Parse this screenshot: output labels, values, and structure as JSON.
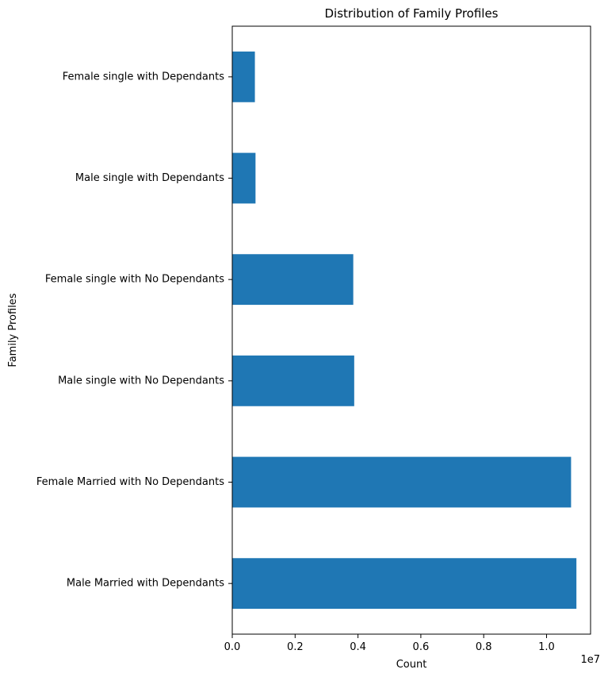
{
  "chart_data": {
    "type": "bar",
    "orientation": "horizontal",
    "title": "Distribution of Family Profiles",
    "xlabel": "Count",
    "ylabel": "Family Profiles",
    "x_offset_label": "1e7",
    "x_scale": 10000000,
    "xlim": [
      0,
      1.14
    ],
    "x_ticks": [
      0.0,
      0.2,
      0.4,
      0.6,
      0.8,
      1.0
    ],
    "x_tick_labels": [
      "0.0",
      "0.2",
      "0.4",
      "0.6",
      "0.8",
      "1.0"
    ],
    "categories": [
      "Male Married with Dependants",
      "Female Married with No Dependants",
      "Male single with No Dependants",
      "Female single with No Dependants",
      "Male single with Dependants",
      "Female single with Dependants"
    ],
    "values": [
      10950000,
      10780000,
      3880000,
      3850000,
      740000,
      720000
    ],
    "bar_color": "#1f77b4",
    "grid": false,
    "legend": "none"
  }
}
